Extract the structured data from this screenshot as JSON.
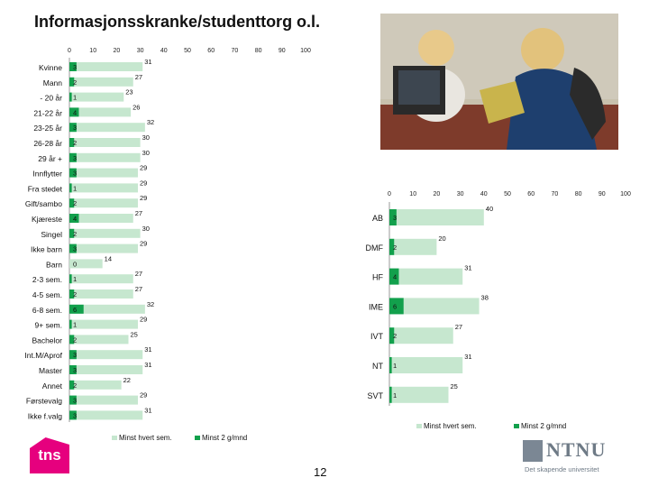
{
  "title": "Informasjonsskranke/studenttorg o.l.",
  "page_number": "12",
  "logos": {
    "tns": "tns",
    "ntnu": "NTNU",
    "ntnu_tagline": "Det skapende universitet"
  },
  "colors": {
    "light_series": "#c6e7cf",
    "dark_series": "#12a04c",
    "axis": "#999999"
  },
  "chart_data": [
    {
      "type": "bar",
      "orientation": "horizontal",
      "xlim": [
        0,
        100
      ],
      "ticks": [
        0,
        10,
        20,
        30,
        40,
        50,
        60,
        70,
        80,
        90,
        100
      ],
      "categories": [
        "Kvinne",
        "Mann",
        "- 20 år",
        "21-22 år",
        "23-25 år",
        "26-28 år",
        "29 år +",
        "Innflytter",
        "Fra stedet",
        "Gift/sambo",
        "Kjæreste",
        "Singel",
        "Ikke barn",
        "Barn",
        "2-3 sem.",
        "4-5 sem.",
        "6-8 sem.",
        "9+ sem.",
        "Bachelor",
        "Int.M/Aprof",
        "Master",
        "Annet",
        "Førstevalg",
        "Ikke f.valg"
      ],
      "series": [
        {
          "name": "Minst hvert sem.",
          "values": [
            31,
            27,
            23,
            26,
            32,
            30,
            30,
            29,
            29,
            29,
            27,
            30,
            29,
            14,
            27,
            27,
            32,
            29,
            25,
            31,
            31,
            22,
            29,
            31
          ]
        },
        {
          "name": "Minst 2 g/mnd",
          "values": [
            3,
            2,
            1,
            4,
            3,
            2,
            3,
            3,
            1,
            2,
            4,
            2,
            3,
            0,
            1,
            2,
            6,
            1,
            2,
            3,
            3,
            2,
            3,
            3
          ]
        }
      ],
      "legend": "bottom"
    },
    {
      "type": "bar",
      "orientation": "horizontal",
      "xlim": [
        0,
        100
      ],
      "ticks": [
        0,
        10,
        20,
        30,
        40,
        50,
        60,
        70,
        80,
        90,
        100
      ],
      "categories": [
        "AB",
        "DMF",
        "HF",
        "IME",
        "IVT",
        "NT",
        "SVT"
      ],
      "series": [
        {
          "name": "Minst hvert sem.",
          "values": [
            40,
            20,
            31,
            38,
            27,
            31,
            25
          ]
        },
        {
          "name": "Minst 2 g/mnd",
          "values": [
            3,
            2,
            4,
            6,
            2,
            1,
            1
          ]
        }
      ],
      "legend": "bottom"
    }
  ]
}
